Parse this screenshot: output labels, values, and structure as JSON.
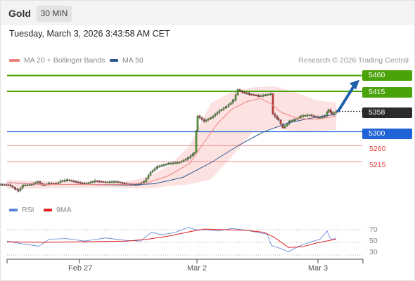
{
  "header": {
    "title": "Gold",
    "timeframe": "30 MIN"
  },
  "timestamp": "Tuesday, March 3, 2026 3:43:58 AM CET",
  "legend": {
    "items": [
      {
        "label": "MA 20 + Bollinger Bands",
        "color": "#f0827e"
      },
      {
        "label": "MA 50",
        "color": "#2e5a91"
      }
    ],
    "credit": "Research © 2026 Trading Central"
  },
  "levels": [
    {
      "label": "5460",
      "value": 5460,
      "style": "resistance-tag",
      "color": "#4aa30a"
    },
    {
      "label": "5415",
      "value": 5415,
      "style": "resistance-tag",
      "color": "#4aa30a"
    },
    {
      "label": "5358",
      "value": 5358,
      "style": "last-price-tag",
      "color": "#2b2b2b"
    },
    {
      "label": "5300",
      "value": 5300,
      "style": "pivot-tag",
      "color": "#1f63d6"
    },
    {
      "label": "5260",
      "value": 5260,
      "style": "support-text",
      "color": "#e23b3b"
    },
    {
      "label": "5215",
      "value": 5215,
      "style": "support-text",
      "color": "#e23b3b"
    }
  ],
  "rsi": {
    "legend": [
      {
        "label": "RSI",
        "color": "#5b7fd6"
      },
      {
        "label": "9MA",
        "color": "#e02020"
      }
    ],
    "ticks": [
      "70",
      "50",
      "30"
    ]
  },
  "x_axis": {
    "labels": [
      "Feb 27",
      "Mar 2",
      "Mar 3"
    ]
  },
  "chart_data": {
    "type": "candlestick",
    "title": "Gold 30 MIN",
    "y_range": [
      5115,
      5485
    ],
    "horizontal_levels": [
      5460,
      5415,
      5300,
      5260,
      5215
    ],
    "last_price": 5358,
    "forecast_target": 5460,
    "x_labels": [
      "Feb 27",
      "Mar 2",
      "Mar 3"
    ],
    "price_path": [
      [
        0,
        5150
      ],
      [
        12,
        5149
      ],
      [
        22,
        5137
      ],
      [
        26,
        5132
      ],
      [
        33,
        5148
      ],
      [
        45,
        5150
      ],
      [
        54,
        5158
      ],
      [
        60,
        5148
      ],
      [
        70,
        5153
      ],
      [
        80,
        5152
      ],
      [
        86,
        5160
      ],
      [
        96,
        5163
      ],
      [
        108,
        5157
      ],
      [
        120,
        5152
      ],
      [
        135,
        5160
      ],
      [
        150,
        5157
      ],
      [
        165,
        5158
      ],
      [
        180,
        5151
      ],
      [
        195,
        5149
      ],
      [
        205,
        5158
      ],
      [
        214,
        5185
      ],
      [
        224,
        5201
      ],
      [
        240,
        5210
      ],
      [
        255,
        5213
      ],
      [
        268,
        5226
      ],
      [
        276,
        5240
      ],
      [
        281,
        5345
      ],
      [
        290,
        5330
      ],
      [
        300,
        5340
      ],
      [
        312,
        5360
      ],
      [
        322,
        5372
      ],
      [
        332,
        5390
      ],
      [
        338,
        5420
      ],
      [
        345,
        5412
      ],
      [
        355,
        5407
      ],
      [
        368,
        5402
      ],
      [
        378,
        5405
      ],
      [
        385,
        5408
      ],
      [
        388,
        5350
      ],
      [
        396,
        5333
      ],
      [
        402,
        5311
      ],
      [
        412,
        5330
      ],
      [
        420,
        5335
      ],
      [
        428,
        5345
      ],
      [
        440,
        5348
      ],
      [
        452,
        5340
      ],
      [
        462,
        5345
      ],
      [
        467,
        5363
      ],
      [
        472,
        5350
      ],
      [
        478,
        5358
      ]
    ],
    "ma20_path": [
      [
        10,
        5155
      ],
      [
        60,
        5150
      ],
      [
        120,
        5150
      ],
      [
        180,
        5150
      ],
      [
        210,
        5155
      ],
      [
        240,
        5175
      ],
      [
        270,
        5210
      ],
      [
        290,
        5270
      ],
      [
        310,
        5325
      ],
      [
        330,
        5365
      ],
      [
        350,
        5385
      ],
      [
        370,
        5395
      ],
      [
        385,
        5380
      ],
      [
        400,
        5355
      ],
      [
        420,
        5340
      ],
      [
        440,
        5335
      ],
      [
        460,
        5338
      ],
      [
        478,
        5345
      ]
    ],
    "ma50_path": [
      [
        10,
        5155
      ],
      [
        60,
        5150
      ],
      [
        120,
        5150
      ],
      [
        180,
        5148
      ],
      [
        220,
        5152
      ],
      [
        260,
        5170
      ],
      [
        300,
        5212
      ],
      [
        340,
        5262
      ],
      [
        375,
        5300
      ],
      [
        410,
        5325
      ],
      [
        440,
        5338
      ],
      [
        478,
        5350
      ]
    ],
    "bollinger_upper": [
      [
        10,
        5163
      ],
      [
        60,
        5160
      ],
      [
        120,
        5158
      ],
      [
        180,
        5158
      ],
      [
        210,
        5172
      ],
      [
        240,
        5202
      ],
      [
        270,
        5262
      ],
      [
        300,
        5382
      ],
      [
        330,
        5415
      ],
      [
        360,
        5426
      ],
      [
        390,
        5430
      ],
      [
        420,
        5412
      ],
      [
        450,
        5390
      ],
      [
        478,
        5382
      ]
    ],
    "bollinger_lower": [
      [
        10,
        5138
      ],
      [
        60,
        5138
      ],
      [
        120,
        5140
      ],
      [
        180,
        5140
      ],
      [
        210,
        5138
      ],
      [
        240,
        5145
      ],
      [
        270,
        5150
      ],
      [
        300,
        5165
      ],
      [
        330,
        5230
      ],
      [
        360,
        5300
      ],
      [
        390,
        5310
      ],
      [
        420,
        5300
      ],
      [
        450,
        5302
      ],
      [
        478,
        5305
      ]
    ],
    "rsi_series": [
      [
        10,
        52
      ],
      [
        30,
        48
      ],
      [
        55,
        44
      ],
      [
        70,
        55
      ],
      [
        95,
        56
      ],
      [
        120,
        52
      ],
      [
        150,
        57
      ],
      [
        180,
        53
      ],
      [
        200,
        52
      ],
      [
        215,
        66
      ],
      [
        230,
        62
      ],
      [
        250,
        66
      ],
      [
        268,
        74
      ],
      [
        278,
        70
      ],
      [
        292,
        70
      ],
      [
        310,
        68
      ],
      [
        330,
        72
      ],
      [
        345,
        70
      ],
      [
        365,
        66
      ],
      [
        380,
        63
      ],
      [
        386,
        45
      ],
      [
        400,
        40
      ],
      [
        410,
        35
      ],
      [
        425,
        44
      ],
      [
        440,
        50
      ],
      [
        455,
        55
      ],
      [
        465,
        68
      ],
      [
        470,
        55
      ],
      [
        478,
        56
      ]
    ],
    "rsi_ma": [
      [
        10,
        51
      ],
      [
        60,
        50
      ],
      [
        120,
        51
      ],
      [
        180,
        52
      ],
      [
        210,
        55
      ],
      [
        240,
        60
      ],
      [
        270,
        67
      ],
      [
        290,
        71
      ],
      [
        320,
        70
      ],
      [
        350,
        69
      ],
      [
        375,
        66
      ],
      [
        390,
        58
      ],
      [
        410,
        42
      ],
      [
        430,
        43
      ],
      [
        450,
        49
      ],
      [
        478,
        55
      ]
    ],
    "rsi_range": [
      20,
      80
    ]
  }
}
